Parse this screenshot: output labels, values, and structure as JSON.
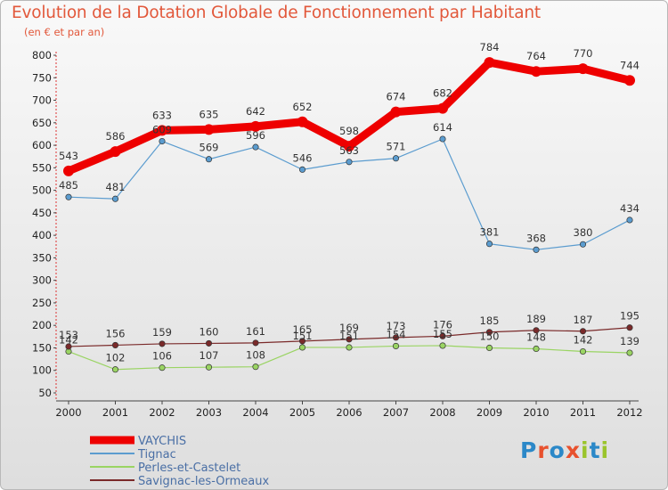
{
  "title": "Evolution de la Dotation Globale de Fonctionnement par Habitant",
  "subtitle": "(en € et par an)",
  "logo": {
    "text": "Proxiti",
    "letter_colors": [
      "#2b88c8",
      "#e8512e",
      "#2b88c8",
      "#e8512e",
      "#9ac42c",
      "#2b88c8",
      "#9ac42c"
    ]
  },
  "chart_data": {
    "type": "line",
    "title": "Evolution de la Dotation Globale de Fonctionnement par Habitant",
    "subtitle": "(en € et par an)",
    "x": [
      "2000",
      "2001",
      "2002",
      "2003",
      "2004",
      "2005",
      "2006",
      "2007",
      "2008",
      "2009",
      "2010",
      "2011",
      "2012"
    ],
    "ylim": [
      50,
      800
    ],
    "yticks": [
      50,
      100,
      150,
      200,
      250,
      300,
      350,
      400,
      450,
      500,
      550,
      600,
      650,
      700,
      750,
      800
    ],
    "grid": false,
    "legend_position": "bottom-left",
    "series": [
      {
        "name": "VAYCHIS",
        "color": "#ee0000",
        "emphasis": true,
        "values": [
          543,
          586,
          633,
          635,
          642,
          652,
          598,
          674,
          682,
          784,
          764,
          770,
          744
        ]
      },
      {
        "name": "Tignac",
        "color": "#5b9ccf",
        "values": [
          485,
          481,
          609,
          569,
          596,
          546,
          563,
          571,
          614,
          381,
          368,
          380,
          434
        ]
      },
      {
        "name": "Perles-et-Castelet",
        "color": "#9ad463",
        "values": [
          142,
          102,
          106,
          107,
          108,
          151,
          151,
          154,
          155,
          150,
          148,
          142,
          139
        ]
      },
      {
        "name": "Savignac-les-Ormeaux",
        "color": "#7a2a2a",
        "values": [
          153,
          156,
          159,
          160,
          161,
          165,
          169,
          173,
          176,
          185,
          189,
          187,
          195
        ]
      }
    ]
  }
}
